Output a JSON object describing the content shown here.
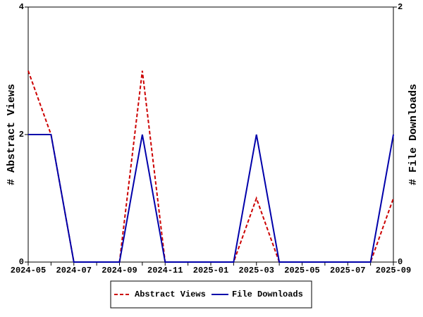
{
  "chart_data": {
    "type": "line",
    "categories": [
      "2024-05",
      null,
      "2024-07",
      null,
      "2024-09",
      null,
      "2024-11",
      null,
      "2025-01",
      null,
      "2025-03",
      null,
      "2025-05",
      null,
      "2025-07",
      null,
      "2025-09"
    ],
    "y_label": "# Abstract Views",
    "y2_label": "# File Downloads",
    "ylim": [
      0,
      4
    ],
    "yticks": [
      0,
      2,
      4
    ],
    "y2lim": [
      0,
      2
    ],
    "y2ticks": [
      0,
      2
    ],
    "series": [
      {
        "name": "Abstract Views",
        "color": "#cc0000",
        "dash": true,
        "values": [
          3,
          2,
          0,
          0,
          0,
          3,
          0,
          0,
          0,
          0,
          1,
          0,
          0,
          0,
          0,
          0,
          1
        ]
      },
      {
        "name": "File Downloads",
        "color": "#0000aa",
        "axis": "y2",
        "values": [
          1,
          1,
          0,
          0,
          0,
          1,
          0,
          0,
          0,
          0,
          1,
          0,
          0,
          0,
          0,
          0,
          1
        ]
      }
    ]
  }
}
